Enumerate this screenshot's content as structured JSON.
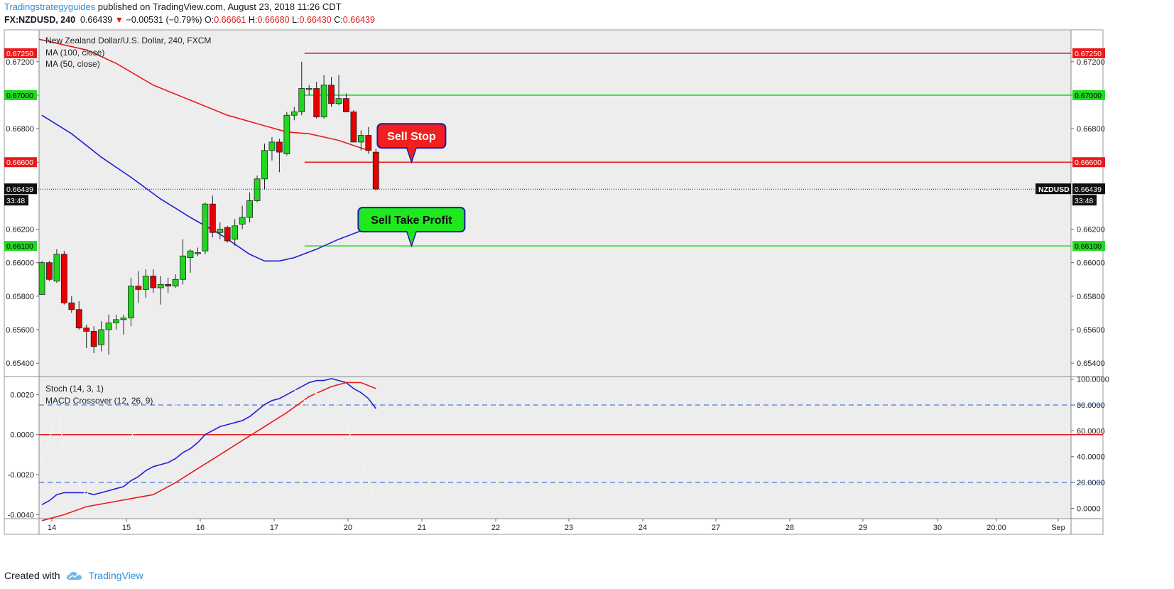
{
  "header": {
    "publisher": "Tradingstrategyguides",
    "published_text": "published on TradingView.com, August 23, 2018 11:26 CDT",
    "symbol": "FX:NZDUSD, 240",
    "last": "0.66439",
    "down_arrow": "▼",
    "change": "−0.00531 (−0.79%)",
    "o_label": "O:",
    "o_value": "0.66661",
    "h_label": "H:",
    "h_value": "0.66680",
    "l_label": "L:",
    "l_value": "0.66430",
    "c_label": "C:",
    "c_value": "0.66439"
  },
  "footer": {
    "created_with": "Created with",
    "brand": "TradingView",
    "logo_icon": "tradingview-cloud-icon"
  },
  "chart_data": [
    {
      "type": "candlestick",
      "title": "New Zealand Dollar/U.S. Dollar, 240, FXCM",
      "legend": [
        "MA (100, close)",
        "MA (50, close)"
      ],
      "ylim": [
        0.6532,
        0.6739
      ],
      "y_ticks": [
        0.654,
        0.656,
        0.658,
        0.66,
        0.662,
        0.666,
        0.668,
        0.67,
        0.672
      ],
      "y_tick_labels": [
        "0.65400",
        "0.65600",
        "0.65800",
        "0.66000",
        "0.66200",
        "0.66600",
        "0.66800",
        "0.67000",
        "0.67200"
      ],
      "x_tick_labels": [
        "14",
        "15",
        "16",
        "17",
        "20",
        "21",
        "22",
        "23",
        "24",
        "27",
        "28",
        "29",
        "30",
        "20:00",
        "Sep"
      ],
      "colors": {
        "up": "#21d621",
        "down": "#e60000",
        "ma100": "#e81c1c",
        "ma50": "#1f1fd6",
        "resistance": "#e81c1c",
        "support": "#22d822"
      },
      "candles": [
        [
          0.6581,
          0.6601,
          0.6581,
          0.66
        ],
        [
          0.66,
          0.6601,
          0.6589,
          0.659
        ],
        [
          0.6589,
          0.6608,
          0.6588,
          0.6605
        ],
        [
          0.6605,
          0.6607,
          0.6575,
          0.6576
        ],
        [
          0.6576,
          0.658,
          0.657,
          0.6572
        ],
        [
          0.6572,
          0.6577,
          0.656,
          0.6561
        ],
        [
          0.6561,
          0.6563,
          0.6549,
          0.6559
        ],
        [
          0.6559,
          0.6562,
          0.6546,
          0.655
        ],
        [
          0.6551,
          0.6565,
          0.6547,
          0.656
        ],
        [
          0.656,
          0.6569,
          0.6545,
          0.6564
        ],
        [
          0.6564,
          0.6569,
          0.656,
          0.6566
        ],
        [
          0.6566,
          0.6569,
          0.6557,
          0.6567
        ],
        [
          0.6567,
          0.6591,
          0.6562,
          0.6586
        ],
        [
          0.6586,
          0.6595,
          0.6576,
          0.6584
        ],
        [
          0.6584,
          0.6596,
          0.6579,
          0.6592
        ],
        [
          0.6592,
          0.6596,
          0.6582,
          0.6585
        ],
        [
          0.6585,
          0.6592,
          0.6575,
          0.6587
        ],
        [
          0.6587,
          0.6591,
          0.6582,
          0.6586
        ],
        [
          0.6586,
          0.6593,
          0.6585,
          0.659
        ],
        [
          0.659,
          0.6614,
          0.6587,
          0.6604
        ],
        [
          0.6603,
          0.6608,
          0.6594,
          0.6607
        ],
        [
          0.6606,
          0.6609,
          0.6604,
          0.6606
        ],
        [
          0.6607,
          0.6636,
          0.6605,
          0.6635
        ],
        [
          0.6635,
          0.664,
          0.6615,
          0.6618
        ],
        [
          0.6618,
          0.6624,
          0.6614,
          0.662
        ],
        [
          0.6621,
          0.6622,
          0.6612,
          0.6613
        ],
        [
          0.6614,
          0.6626,
          0.661,
          0.6622
        ],
        [
          0.6623,
          0.6634,
          0.662,
          0.6627
        ],
        [
          0.6627,
          0.6642,
          0.6624,
          0.6637
        ],
        [
          0.6637,
          0.6652,
          0.6636,
          0.665
        ],
        [
          0.665,
          0.6671,
          0.6644,
          0.6667
        ],
        [
          0.6667,
          0.6675,
          0.6661,
          0.6672
        ],
        [
          0.6672,
          0.6674,
          0.6654,
          0.6666
        ],
        [
          0.6665,
          0.669,
          0.6664,
          0.6688
        ],
        [
          0.6688,
          0.6693,
          0.6685,
          0.669
        ],
        [
          0.669,
          0.672,
          0.6688,
          0.6704
        ],
        [
          0.6704,
          0.6706,
          0.67,
          0.6704
        ],
        [
          0.6704,
          0.6708,
          0.6686,
          0.6687
        ],
        [
          0.6687,
          0.6712,
          0.6686,
          0.6706
        ],
        [
          0.6706,
          0.6711,
          0.6693,
          0.6695
        ],
        [
          0.6695,
          0.6712,
          0.6694,
          0.6698
        ],
        [
          0.6698,
          0.6701,
          0.669,
          0.669
        ],
        [
          0.669,
          0.6691,
          0.6673,
          0.6672
        ],
        [
          0.6672,
          0.6679,
          0.6667,
          0.6676
        ],
        [
          0.6676,
          0.6681,
          0.6665,
          0.6667
        ],
        [
          0.6666,
          0.6668,
          0.6643,
          0.6644
        ]
      ],
      "ma100": [
        [
          -3,
          0.6736
        ],
        [
          6,
          0.6727
        ],
        [
          10,
          0.6719
        ],
        [
          15,
          0.6706
        ],
        [
          20,
          0.6697
        ],
        [
          25,
          0.6688
        ],
        [
          29,
          0.6683
        ],
        [
          33,
          0.6678
        ],
        [
          36,
          0.6677
        ],
        [
          40,
          0.6673
        ],
        [
          42,
          0.667
        ],
        [
          44,
          0.6667
        ]
      ],
      "ma50": [
        [
          0,
          0.6688
        ],
        [
          4,
          0.6677
        ],
        [
          8,
          0.6663
        ],
        [
          12,
          0.6651
        ],
        [
          16,
          0.6638
        ],
        [
          20,
          0.6627
        ],
        [
          24,
          0.6617
        ],
        [
          28,
          0.6605
        ],
        [
          30,
          0.6601
        ],
        [
          32,
          0.6601
        ],
        [
          34,
          0.6603
        ],
        [
          37,
          0.6608
        ],
        [
          40,
          0.6614
        ],
        [
          43,
          0.6619
        ],
        [
          45,
          0.6622
        ]
      ],
      "levels": [
        {
          "value": 0.6725,
          "label": "0.67250",
          "color": "#e81c1c",
          "from": 35
        },
        {
          "value": 0.67,
          "label": "0.67000",
          "color": "#22d822",
          "from": 35
        },
        {
          "value": 0.666,
          "label": "0.66600",
          "color": "#e81c1c",
          "from": 35
        },
        {
          "value": 0.661,
          "label": "0.66100",
          "color": "#22d822",
          "from": 35
        }
      ],
      "last_price": {
        "value": 0.66439,
        "label": "0.66439",
        "countdown": "33:48",
        "symbol": "NZDUSD"
      },
      "annotations": [
        {
          "text": "Sell Stop",
          "x": 49.8,
          "y": 0.666,
          "fill": "#f21f1f",
          "text_color": "#ffffff"
        },
        {
          "text": "Sell Take Profit",
          "x": 49.8,
          "y": 0.661,
          "fill": "#1ee81e",
          "text_color": "#0d0d0d"
        }
      ]
    },
    {
      "type": "line",
      "legend": [
        "Stoch (14, 3, 1)",
        "MACD Crossover (12, 26, 9)"
      ],
      "left_ylim": [
        -0.0042,
        0.0029
      ],
      "left_ticks": [
        -0.004,
        -0.002,
        0,
        0.002
      ],
      "left_tick_labels": [
        "-0.0040",
        "-0.0020",
        "0.0000",
        "0.0020"
      ],
      "right_ylim": [
        -8,
        102
      ],
      "right_ticks": [
        0,
        20,
        40,
        60,
        80,
        100
      ],
      "right_tick_labels": [
        "0.0000",
        "20.0000",
        "40.0000",
        "60.0000",
        "80.0000",
        "100.0000"
      ],
      "stoch_levels": [
        20,
        80
      ],
      "zero_line_color": "#e81c1c",
      "series": [
        {
          "id": "macd",
          "axis": "left",
          "color": "#1f1fd6",
          "points": [
            [
              0,
              -0.0035
            ],
            [
              1,
              -0.0033
            ],
            [
              2,
              -0.003
            ],
            [
              3,
              -0.0029
            ],
            [
              4,
              -0.0029
            ],
            [
              5,
              -0.0029
            ],
            [
              6,
              -0.0029
            ],
            [
              7,
              -0.003
            ],
            [
              8,
              -0.0029
            ],
            [
              9,
              -0.0028
            ],
            [
              10,
              -0.0027
            ],
            [
              11,
              -0.0026
            ],
            [
              12,
              -0.0023
            ],
            [
              13,
              -0.0021
            ],
            [
              14,
              -0.0018
            ],
            [
              15,
              -0.0016
            ],
            [
              16,
              -0.0015
            ],
            [
              17,
              -0.0014
            ],
            [
              18,
              -0.0012
            ],
            [
              19,
              -0.0009
            ],
            [
              20,
              -0.0007
            ],
            [
              21,
              -0.0004
            ],
            [
              22,
              0.0
            ],
            [
              23,
              0.0002
            ],
            [
              24,
              0.0004
            ],
            [
              25,
              0.0005
            ],
            [
              26,
              0.0006
            ],
            [
              27,
              0.0007
            ],
            [
              28,
              0.0009
            ],
            [
              29,
              0.0012
            ],
            [
              30,
              0.0015
            ],
            [
              31,
              0.0017
            ],
            [
              32,
              0.0018
            ],
            [
              33,
              0.002
            ],
            [
              34,
              0.0022
            ],
            [
              35,
              0.0024
            ],
            [
              36,
              0.0026
            ],
            [
              37,
              0.0027
            ],
            [
              38,
              0.0027
            ],
            [
              39,
              0.0028
            ],
            [
              40,
              0.0027
            ],
            [
              41,
              0.0026
            ],
            [
              42,
              0.0023
            ],
            [
              43,
              0.0021
            ],
            [
              44,
              0.0018
            ],
            [
              45,
              0.0013
            ]
          ]
        },
        {
          "id": "signal",
          "axis": "left",
          "color": "#e81c1c",
          "points": [
            [
              0,
              -0.0043
            ],
            [
              3,
              -0.004
            ],
            [
              6,
              -0.0036
            ],
            [
              9,
              -0.0034
            ],
            [
              12,
              -0.0032
            ],
            [
              15,
              -0.003
            ],
            [
              18,
              -0.0024
            ],
            [
              21,
              -0.0017
            ],
            [
              24,
              -0.001
            ],
            [
              27,
              -0.0003
            ],
            [
              30,
              0.0004
            ],
            [
              33,
              0.0011
            ],
            [
              36,
              0.0019
            ],
            [
              39,
              0.0024
            ],
            [
              41,
              0.0026
            ],
            [
              43,
              0.0026
            ],
            [
              45,
              0.0023
            ]
          ]
        },
        {
          "id": "stoch",
          "axis": "right",
          "color": "#f2f2f2",
          "points": [
            [
              0,
              38
            ],
            [
              1,
              52
            ],
            [
              2,
              80
            ],
            [
              3,
              45
            ],
            [
              4,
              25
            ],
            [
              5,
              18
            ],
            [
              6,
              10
            ],
            [
              7,
              20
            ],
            [
              8,
              25
            ],
            [
              9,
              30
            ],
            [
              10,
              33
            ],
            [
              11,
              40
            ],
            [
              12,
              55
            ],
            [
              13,
              65
            ],
            [
              14,
              72
            ],
            [
              15,
              62
            ],
            [
              16,
              70
            ],
            [
              17,
              75
            ],
            [
              18,
              78
            ],
            [
              19,
              88
            ],
            [
              20,
              95
            ],
            [
              21,
              97
            ],
            [
              22,
              85
            ],
            [
              23,
              82
            ],
            [
              24,
              78
            ],
            [
              25,
              80
            ],
            [
              26,
              85
            ],
            [
              27,
              88
            ],
            [
              28,
              90
            ],
            [
              29,
              95
            ],
            [
              30,
              97
            ],
            [
              31,
              96
            ],
            [
              32,
              92
            ],
            [
              33,
              93
            ],
            [
              34,
              92
            ],
            [
              35,
              88
            ],
            [
              36,
              75
            ],
            [
              37,
              90
            ],
            [
              38,
              75
            ],
            [
              39,
              85
            ],
            [
              40,
              80
            ],
            [
              41,
              65
            ],
            [
              42,
              50
            ],
            [
              43,
              40
            ],
            [
              44,
              20
            ],
            [
              45,
              2
            ]
          ]
        }
      ]
    }
  ]
}
